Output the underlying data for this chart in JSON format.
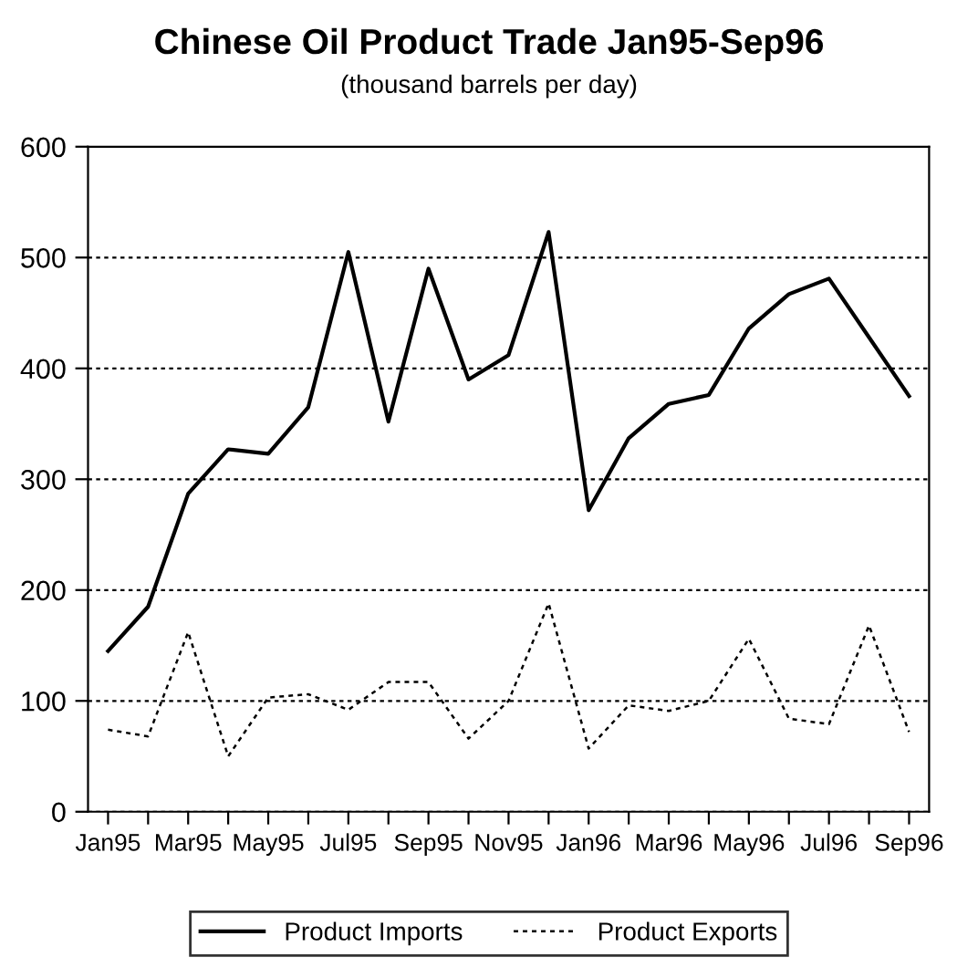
{
  "chart_data": {
    "type": "line",
    "title": "Chinese Oil Product Trade Jan95-Sep96",
    "subtitle": "(thousand barrels per day)",
    "categories": [
      "Jan95",
      null,
      "Mar95",
      null,
      "May95",
      null,
      "Jul95",
      null,
      "Sep95",
      null,
      "Nov95",
      null,
      "Jan96",
      null,
      "Mar96",
      null,
      "May96",
      null,
      "Jul96",
      null,
      "Sep96"
    ],
    "series": [
      {
        "name": "Product Imports",
        "color": "#000000",
        "line_style": "solid",
        "values": [
          145,
          185,
          287,
          327,
          323,
          365,
          505,
          352,
          490,
          390,
          412,
          523,
          272,
          337,
          368,
          376,
          436,
          467,
          481,
          428,
          375
        ]
      },
      {
        "name": "Product Exports",
        "color": "#000000",
        "line_style": "dotted",
        "values": [
          74,
          68,
          162,
          50,
          103,
          106,
          92,
          117,
          117,
          66,
          100,
          188,
          57,
          96,
          91,
          100,
          156,
          84,
          79,
          168,
          72
        ]
      }
    ],
    "ylim": [
      0,
      600
    ],
    "yticks": [
      0,
      100,
      200,
      300,
      400,
      500,
      600
    ],
    "grid": "y",
    "legend": "bottom",
    "marker": "none"
  }
}
